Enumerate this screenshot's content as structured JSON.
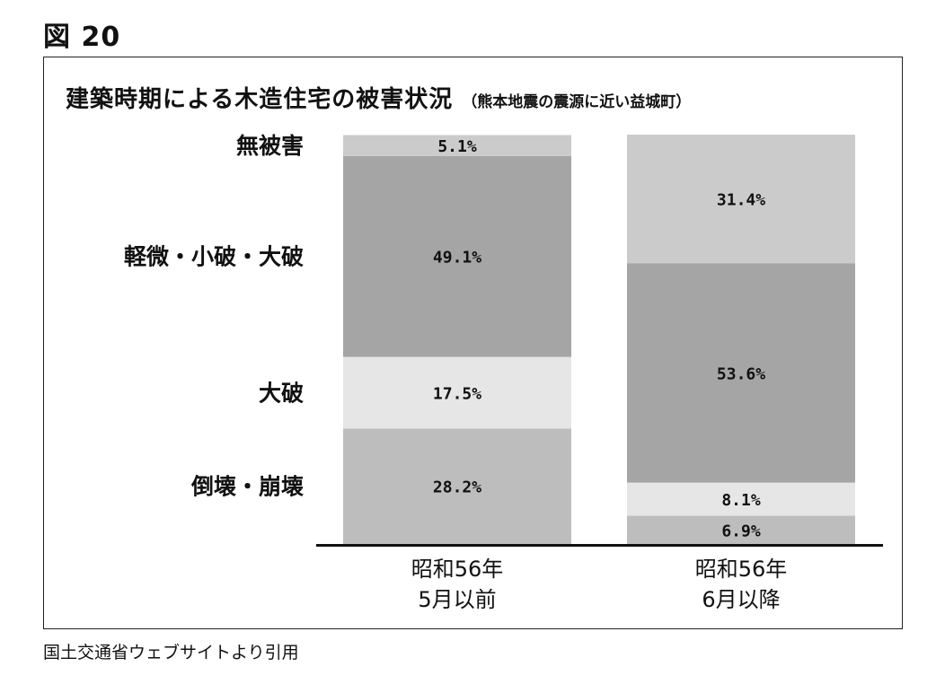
{
  "figure_label": "図 20",
  "source_note": "国土交通省ウェブサイトより引用",
  "colors": {
    "無被害": "#cbcbcb",
    "軽微・小破・大破": "#a5a5a5",
    "大破": "#e6e6e6",
    "倒壊・崩壊": "#bdbdbd",
    "axis": "#111111"
  },
  "chart_data": {
    "type": "bar",
    "stacked": true,
    "normalized": true,
    "title": "建築時期による木造住宅の被害状況",
    "subtitle": "（熊本地震の震源に近い益城町）",
    "xlabel": "",
    "ylabel": "",
    "ylim": [
      0,
      100
    ],
    "grid": false,
    "legend": "left-side row labels",
    "categories": [
      [
        "昭和56年",
        "5月以前"
      ],
      [
        "昭和56年",
        "6月以降"
      ]
    ],
    "series": [
      {
        "name": "倒壊・崩壊",
        "values": [
          28.2,
          6.9
        ],
        "labels": [
          "28.2%",
          "6.9%"
        ]
      },
      {
        "name": "大破",
        "values": [
          17.5,
          8.1
        ],
        "labels": [
          "17.5%",
          "8.1%"
        ]
      },
      {
        "name": "軽微・小破・大破",
        "values": [
          49.1,
          53.6
        ],
        "labels": [
          "49.1%",
          "53.6%"
        ]
      },
      {
        "name": "無被害",
        "values": [
          5.1,
          31.4
        ],
        "labels": [
          "5.1%",
          "31.4%"
        ]
      }
    ]
  }
}
